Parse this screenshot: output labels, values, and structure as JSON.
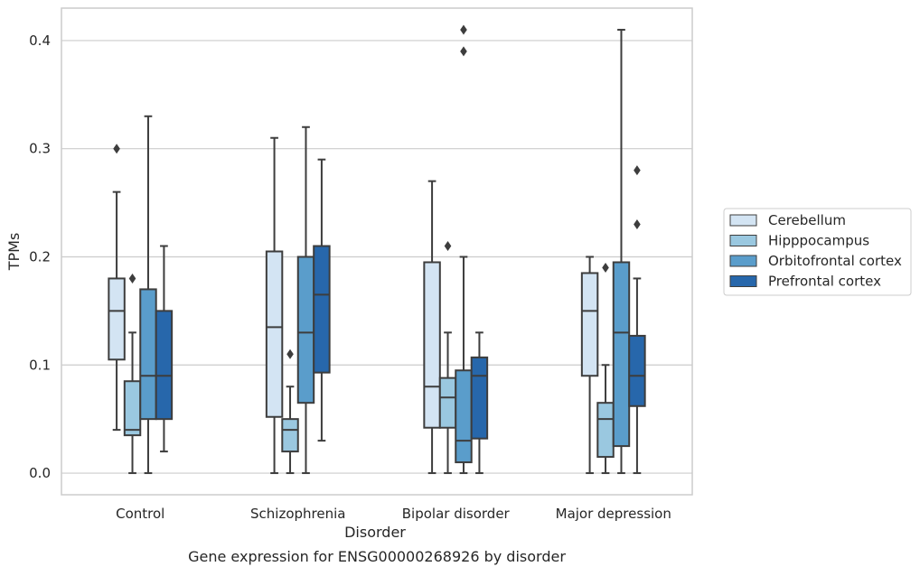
{
  "chart_data": {
    "type": "box",
    "title": "",
    "caption": "Gene expression for ENSG00000268926 by disorder",
    "xlabel": "Disorder",
    "ylabel": "TPMs",
    "ylim": [
      -0.02,
      0.43
    ],
    "yticks": [
      "0.0",
      "0.1",
      "0.2",
      "0.3",
      "0.4"
    ],
    "ytick_values": [
      0.0,
      0.1,
      0.2,
      0.3,
      0.4
    ],
    "grid": "horizontal",
    "legend_position": "right",
    "categories": [
      "Control",
      "Schizophrenia",
      "Bipolar disorder",
      "Major depression"
    ],
    "series": [
      {
        "name": "Cerebellum",
        "color": "#d3e4f3",
        "boxes": [
          {
            "whisker_low": 0.04,
            "q1": 0.105,
            "median": 0.15,
            "q3": 0.18,
            "whisker_high": 0.26,
            "outliers": [
              0.3
            ]
          },
          {
            "whisker_low": 0.0,
            "q1": 0.052,
            "median": 0.135,
            "q3": 0.205,
            "whisker_high": 0.31,
            "outliers": []
          },
          {
            "whisker_low": 0.0,
            "q1": 0.042,
            "median": 0.08,
            "q3": 0.195,
            "whisker_high": 0.27,
            "outliers": []
          },
          {
            "whisker_low": 0.0,
            "q1": 0.09,
            "median": 0.15,
            "q3": 0.185,
            "whisker_high": 0.2,
            "outliers": []
          }
        ]
      },
      {
        "name": "Hipppocampus",
        "color": "#9ac8e0",
        "boxes": [
          {
            "whisker_low": 0.0,
            "q1": 0.035,
            "median": 0.04,
            "q3": 0.085,
            "whisker_high": 0.13,
            "outliers": [
              0.18
            ]
          },
          {
            "whisker_low": 0.0,
            "q1": 0.02,
            "median": 0.04,
            "q3": 0.05,
            "whisker_high": 0.08,
            "outliers": [
              0.11
            ]
          },
          {
            "whisker_low": 0.0,
            "q1": 0.042,
            "median": 0.07,
            "q3": 0.088,
            "whisker_high": 0.13,
            "outliers": [
              0.21
            ]
          },
          {
            "whisker_low": 0.0,
            "q1": 0.015,
            "median": 0.05,
            "q3": 0.065,
            "whisker_high": 0.1,
            "outliers": [
              0.19
            ]
          }
        ]
      },
      {
        "name": "Orbitofrontal cortex",
        "color": "#5a9dcb",
        "boxes": [
          {
            "whisker_low": 0.0,
            "q1": 0.05,
            "median": 0.09,
            "q3": 0.17,
            "whisker_high": 0.33,
            "outliers": []
          },
          {
            "whisker_low": 0.0,
            "q1": 0.065,
            "median": 0.13,
            "q3": 0.2,
            "whisker_high": 0.32,
            "outliers": []
          },
          {
            "whisker_low": 0.0,
            "q1": 0.01,
            "median": 0.03,
            "q3": 0.095,
            "whisker_high": 0.2,
            "outliers": [
              0.39,
              0.41
            ]
          },
          {
            "whisker_low": 0.0,
            "q1": 0.025,
            "median": 0.13,
            "q3": 0.195,
            "whisker_high": 0.41,
            "outliers": []
          }
        ]
      },
      {
        "name": "Prefrontal cortex",
        "color": "#2767ab",
        "boxes": [
          {
            "whisker_low": 0.02,
            "q1": 0.05,
            "median": 0.09,
            "q3": 0.15,
            "whisker_high": 0.21,
            "outliers": []
          },
          {
            "whisker_low": 0.03,
            "q1": 0.093,
            "median": 0.165,
            "q3": 0.21,
            "whisker_high": 0.29,
            "outliers": []
          },
          {
            "whisker_low": 0.0,
            "q1": 0.032,
            "median": 0.09,
            "q3": 0.107,
            "whisker_high": 0.13,
            "outliers": []
          },
          {
            "whisker_low": 0.0,
            "q1": 0.062,
            "median": 0.09,
            "q3": 0.127,
            "whisker_high": 0.18,
            "outliers": [
              0.23,
              0.28
            ]
          }
        ]
      }
    ],
    "colors": {
      "line": "#3d3d3d",
      "grid": "#cccccc",
      "frame": "#cccccc"
    }
  }
}
